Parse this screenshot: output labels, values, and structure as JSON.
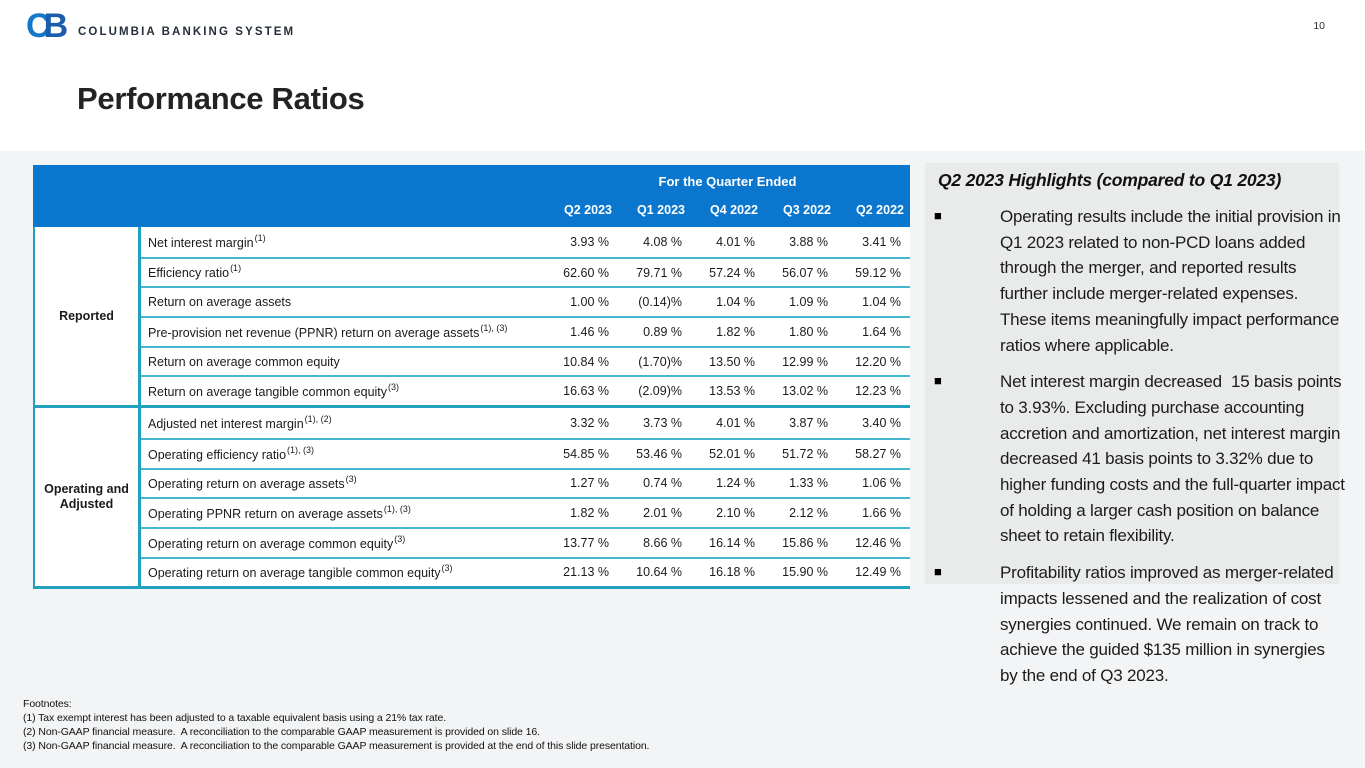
{
  "header": {
    "logo_c": "C",
    "logo_b": "B",
    "company": "COLUMBIA BANKING SYSTEM",
    "page_number": "10"
  },
  "title": "Performance Ratios",
  "table": {
    "span_header": "For the Quarter Ended",
    "columns": [
      "Q2 2023",
      "Q1 2023",
      "Q4 2022",
      "Q3 2022",
      "Q2 2022"
    ],
    "groups": [
      {
        "label": "Reported",
        "rows": [
          {
            "metric": "Net interest margin",
            "sup": "(1)",
            "values": [
              "3.93 %",
              "4.08 %",
              "4.01 %",
              "3.88 %",
              "3.41 %"
            ]
          },
          {
            "metric": "Efficiency ratio",
            "sup": "(1)",
            "values": [
              "62.60 %",
              "79.71 %",
              "57.24 %",
              "56.07 %",
              "59.12 %"
            ]
          },
          {
            "metric": "Return on average assets",
            "sup": "",
            "values": [
              "1.00 %",
              "(0.14)%",
              "1.04 %",
              "1.09 %",
              "1.04 %"
            ]
          },
          {
            "metric": "Pre-provision net revenue (PPNR) return on average assets",
            "sup": "(1), (3)",
            "values": [
              "1.46 %",
              "0.89 %",
              "1.82 %",
              "1.80 %",
              "1.64 %"
            ]
          },
          {
            "metric": "Return on average common equity",
            "sup": "",
            "values": [
              "10.84 %",
              "(1.70)%",
              "13.50 %",
              "12.99 %",
              "12.20 %"
            ]
          },
          {
            "metric": "Return on average tangible common equity",
            "sup": "(3)",
            "values": [
              "16.63 %",
              "(2.09)%",
              "13.53 %",
              "13.02 %",
              "12.23 %"
            ]
          }
        ]
      },
      {
        "label": "Operating and Adjusted",
        "rows": [
          {
            "metric": "Adjusted net interest margin",
            "sup": "(1), (2)",
            "values": [
              "3.32 %",
              "3.73 %",
              "4.01 %",
              "3.87 %",
              "3.40 %"
            ]
          },
          {
            "metric": "Operating efficiency ratio",
            "sup": "(1), (3)",
            "values": [
              "54.85 %",
              "53.46 %",
              "52.01 %",
              "51.72 %",
              "58.27 %"
            ]
          },
          {
            "metric": "Operating return on average assets",
            "sup": "(3)",
            "values": [
              "1.27 %",
              "0.74 %",
              "1.24 %",
              "1.33 %",
              "1.06 %"
            ]
          },
          {
            "metric": "Operating PPNR return on average assets",
            "sup": "(1), (3)",
            "values": [
              "1.82 %",
              "2.01 %",
              "2.10 %",
              "2.12 %",
              "1.66 %"
            ]
          },
          {
            "metric": "Operating return on average common equity",
            "sup": "(3)",
            "values": [
              "13.77 %",
              "8.66 %",
              "16.14 %",
              "15.86 %",
              "12.46 %"
            ]
          },
          {
            "metric": "Operating return on average tangible common equity",
            "sup": "(3)",
            "values": [
              "21.13 %",
              "10.64 %",
              "16.18 %",
              "15.90 %",
              "12.49 %"
            ]
          }
        ]
      }
    ]
  },
  "highlights": {
    "title": "Q2 2023 Highlights (compared to Q1 2023)",
    "bullet_glyph": "■",
    "bullets": [
      "Operating results include the initial provision in Q1 2023 related to non-PCD loans added through the merger, and reported results further include merger-related expenses. These items meaningfully impact performance ratios where applicable.",
      "Net interest margin decreased  15 basis points to 3.93%. Excluding purchase accounting accretion and amortization, net interest margin decreased 41 basis points to 3.32% due to higher funding costs and the full-quarter impact of holding a larger cash position on balance sheet to retain flexibility.",
      "Profitability ratios improved as merger-related impacts lessened and the realization of cost synergies continued. We remain on track to achieve the guided $135 million in synergies by the end of Q3 2023."
    ]
  },
  "footnotes": {
    "label": "Footnotes:",
    "items": [
      "(1) Tax exempt interest has been adjusted to a taxable equivalent basis using a 21% tax rate.",
      "(2) Non-GAAP financial measure.  A reconciliation to the comparable GAAP measurement is provided on slide 16.",
      "(3) Non-GAAP financial measure.  A reconciliation to the comparable GAAP measurement is provided at the end of this slide presentation."
    ]
  },
  "colors": {
    "header_blue": "#0a76cd",
    "table_border_teal": "#21a0c0",
    "row_line_teal": "#45b6d0",
    "panel_gray": "#e9ebeb",
    "logo_blue_light": "#1478c8",
    "logo_blue_dark": "#1b5cab"
  }
}
